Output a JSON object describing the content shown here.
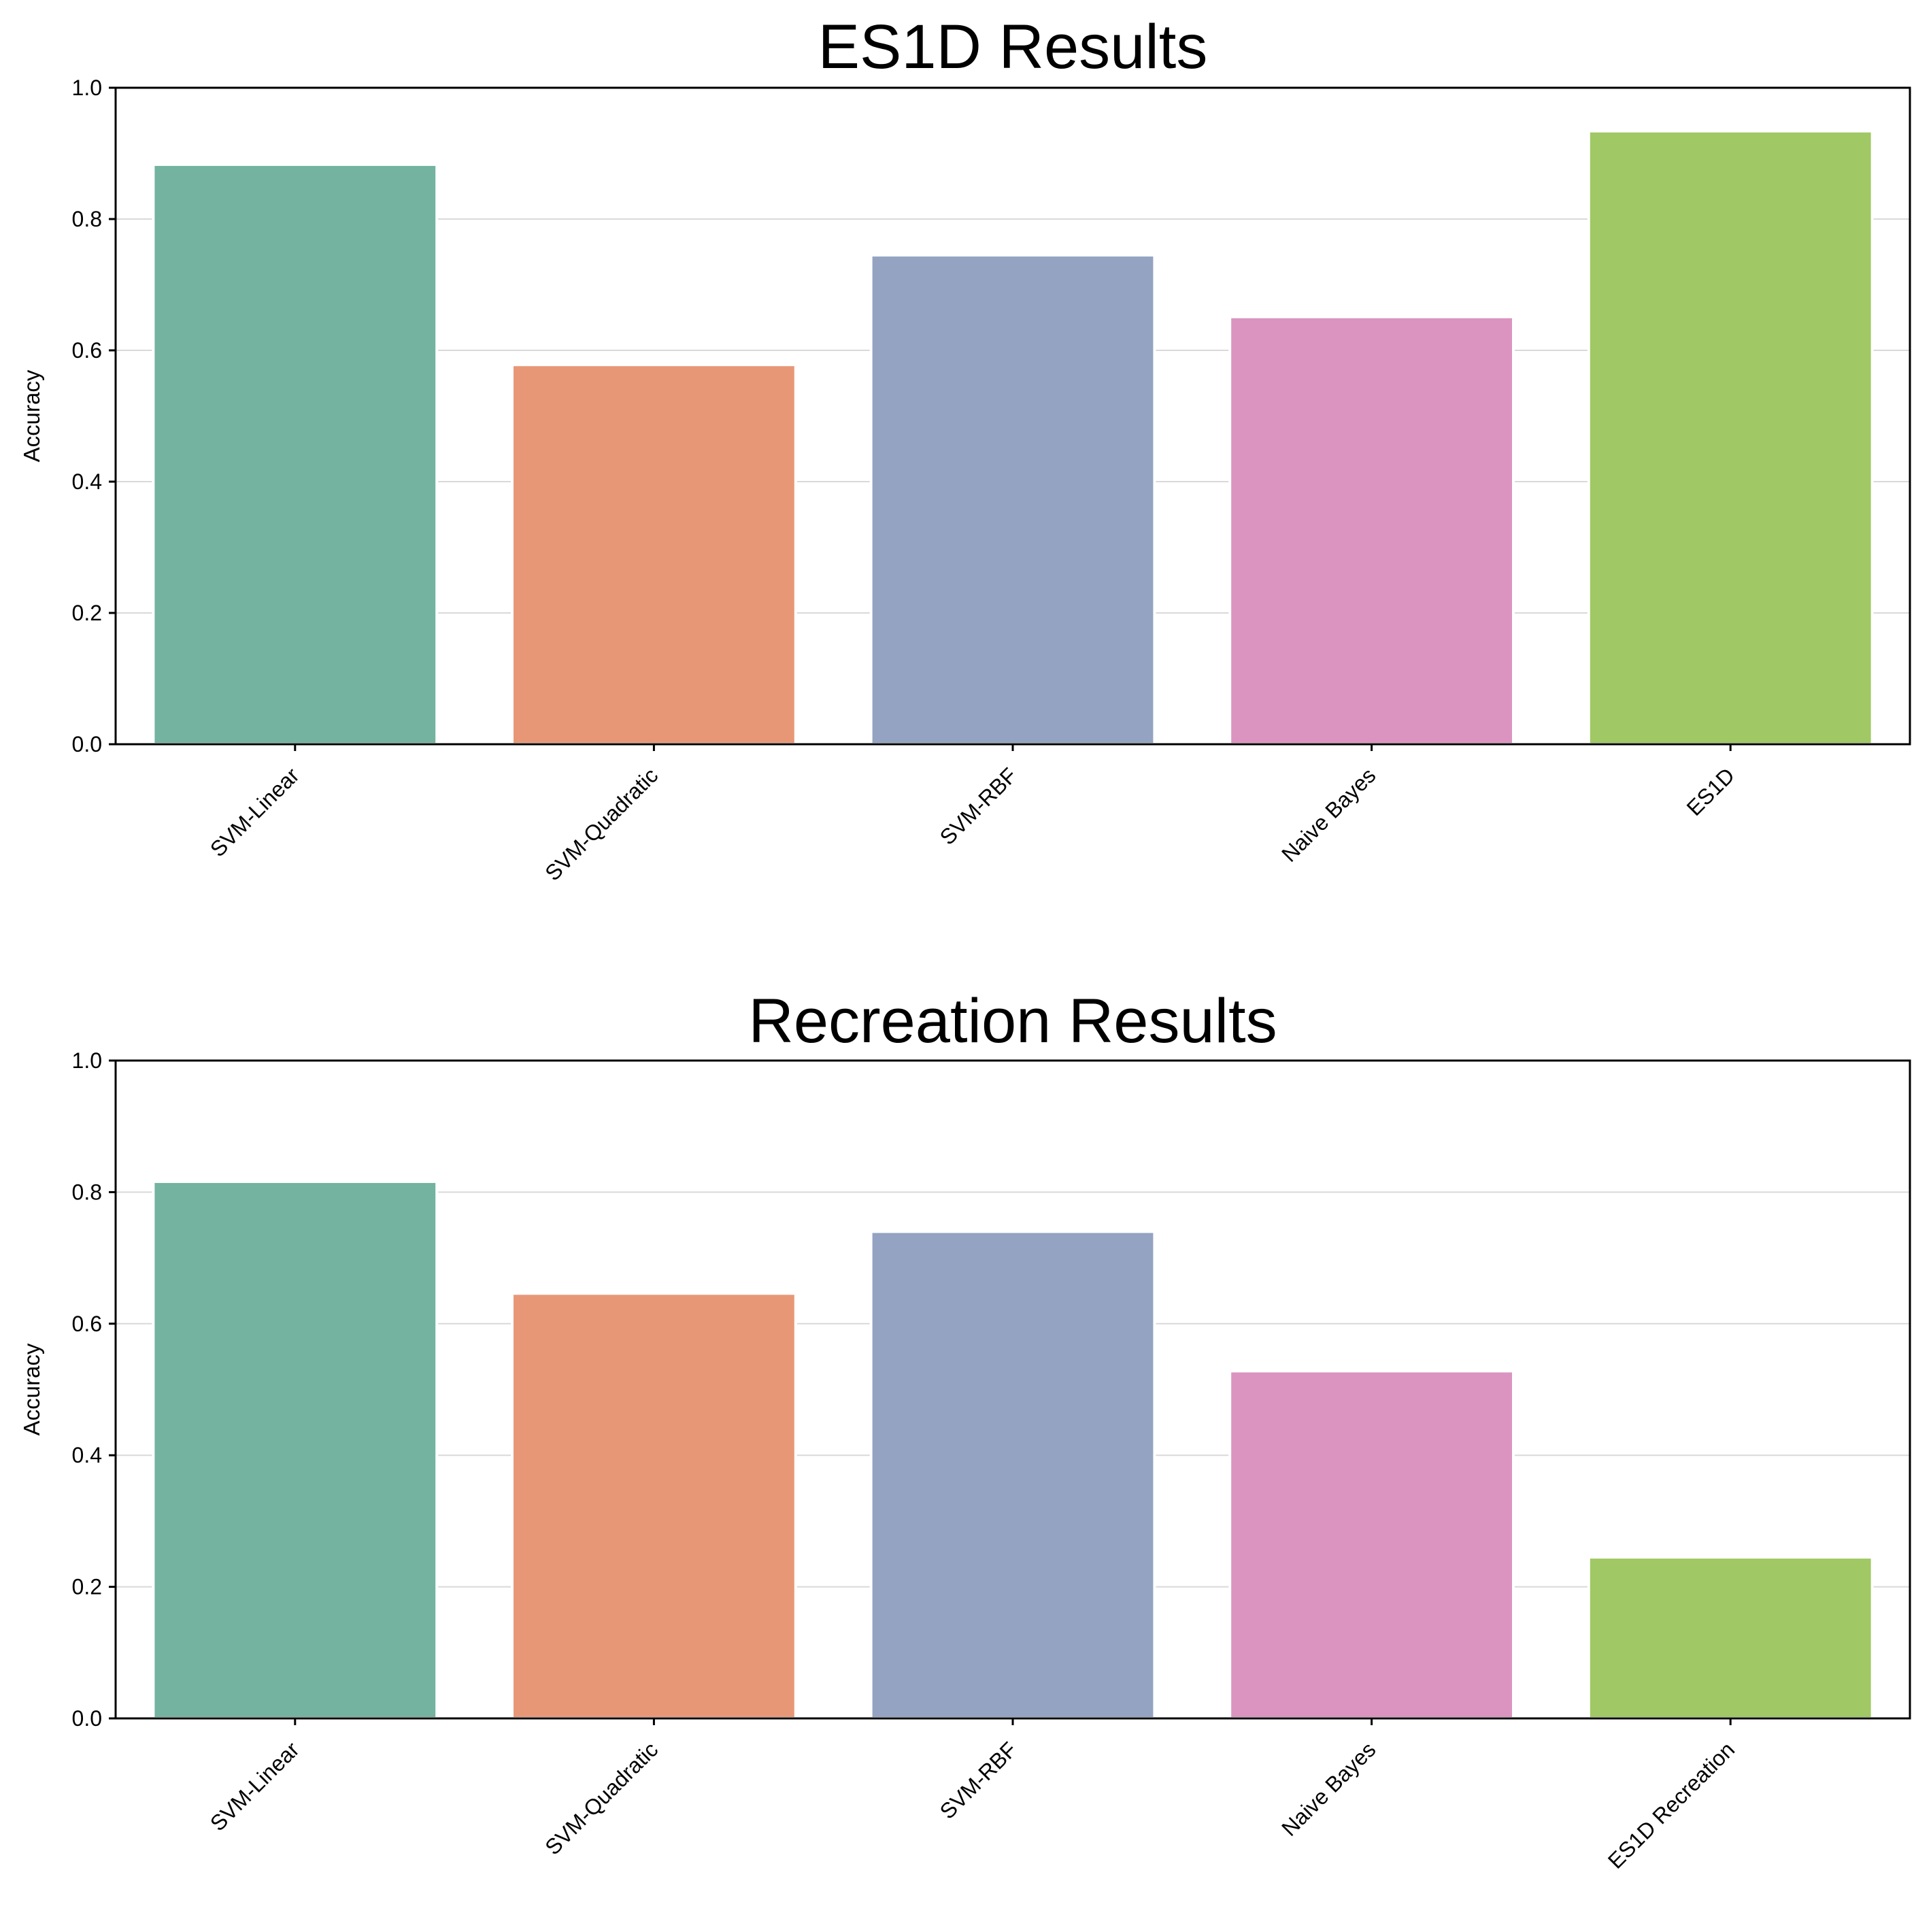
{
  "chart_data": [
    {
      "type": "bar",
      "title": "ES1D Results",
      "xlabel": "",
      "ylabel": "Accuracy",
      "ylim": [
        0,
        1
      ],
      "yticks": [
        "0.0",
        "0.2",
        "0.4",
        "0.6",
        "0.8",
        "1.0"
      ],
      "grid": true,
      "categories": [
        "SVM-Linear",
        "SVM-Quadratic",
        "SVM-RBF",
        "Naive Bayes",
        "ES1D"
      ],
      "values": [
        0.883,
        0.578,
        0.745,
        0.651,
        0.934
      ],
      "colors": [
        "#73b3a0",
        "#e89776",
        "#94a3c2",
        "#db94bf",
        "#a0c864"
      ]
    },
    {
      "type": "bar",
      "title": "Recreation Results",
      "xlabel": "",
      "ylabel": "Accuracy",
      "ylim": [
        0,
        1
      ],
      "yticks": [
        "0.0",
        "0.2",
        "0.4",
        "0.6",
        "0.8",
        "1.0"
      ],
      "grid": true,
      "categories": [
        "SVM-Linear",
        "SVM-Quadratic",
        "SVM-RBF",
        "Naive Bayes",
        "ES1D Recreation"
      ],
      "values": [
        0.816,
        0.646,
        0.74,
        0.528,
        0.245
      ],
      "colors": [
        "#73b3a0",
        "#e89776",
        "#94a3c2",
        "#db94bf",
        "#a0c864"
      ]
    }
  ]
}
